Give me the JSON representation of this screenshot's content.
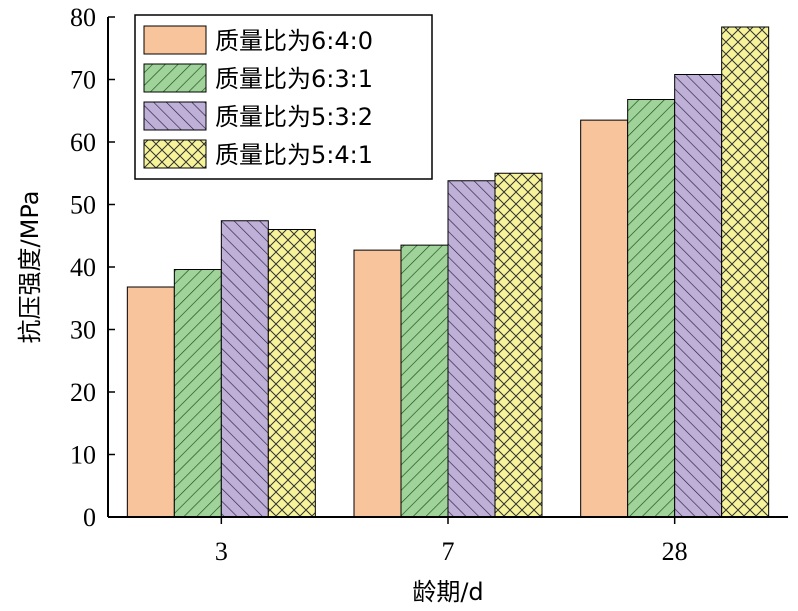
{
  "chart_data": {
    "type": "bar",
    "xlabel": "龄期/d",
    "ylabel": "抗压强度/MPa",
    "categories": [
      "3",
      "7",
      "28"
    ],
    "ylim": [
      0,
      80
    ],
    "yticks": [
      0,
      10,
      20,
      30,
      40,
      50,
      60,
      70,
      80
    ],
    "grid": false,
    "legend_position": "top-left",
    "series": [
      {
        "name": "质量比为6:4:0",
        "values": [
          36.8,
          42.7,
          63.5
        ],
        "color": "#f8c49c",
        "pattern": "solid"
      },
      {
        "name": "质量比为6:3:1",
        "values": [
          39.6,
          43.5,
          66.8
        ],
        "color": "#9fd39a",
        "pattern": "forward-diagonal"
      },
      {
        "name": "质量比为5:3:2",
        "values": [
          47.4,
          53.8,
          70.8
        ],
        "color": "#bfb0d8",
        "pattern": "back-diagonal"
      },
      {
        "name": "质量比为5:4:1",
        "values": [
          46.0,
          55.0,
          78.4
        ],
        "color": "#f6f39a",
        "pattern": "crosshatch"
      }
    ]
  }
}
